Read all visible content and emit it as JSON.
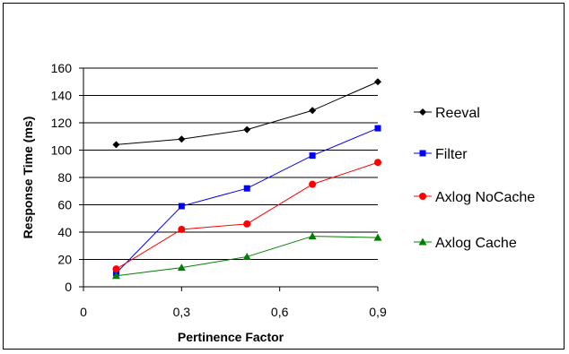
{
  "chart_data": {
    "type": "line",
    "title": "",
    "xlabel": "Pertinence Factor",
    "ylabel": "Response Time (ms)",
    "xlim": [
      0,
      0.9
    ],
    "ylim": [
      0,
      160
    ],
    "x_ticks": [
      "0",
      "0,3",
      "0,6",
      "0,9"
    ],
    "y_ticks": [
      "0",
      "20",
      "40",
      "60",
      "80",
      "100",
      "120",
      "140",
      "160"
    ],
    "grid": "horizontal",
    "legend": "right",
    "x": [
      0.1,
      0.3,
      0.5,
      0.7,
      0.9
    ],
    "series": [
      {
        "name": "Reeval",
        "values": [
          104,
          108,
          115,
          129,
          150
        ],
        "color": "#000000",
        "marker": "diamond"
      },
      {
        "name": "Filter",
        "values": [
          10,
          59,
          72,
          96,
          116
        ],
        "color": "#0000ff",
        "marker": "square"
      },
      {
        "name": "Axlog NoCache",
        "values": [
          13,
          42,
          46,
          75,
          91
        ],
        "color": "#ff0000",
        "marker": "circle"
      },
      {
        "name": "Axlog Cache",
        "values": [
          8,
          14,
          22,
          37,
          36
        ],
        "color": "#008000",
        "marker": "triangle"
      }
    ]
  }
}
